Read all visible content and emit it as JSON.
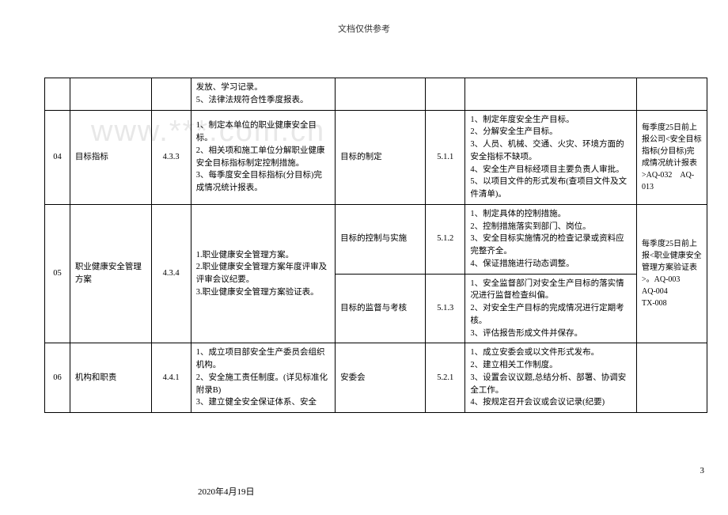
{
  "header": "文档仅供参考",
  "watermark": "www.***.com.cn",
  "footer_date": "2020年4月19日",
  "page_number": "3",
  "rows": {
    "r0": {
      "desc1": "发放、学习记录。\n5、法律法规符合性季度报表。"
    },
    "r04": {
      "num": "04",
      "name": "目标指标",
      "code": "4.3.3",
      "desc1": "1、制定本单位的职业健康安全目标。\n2、相关项和施工单位分解职业健康安全目标指标制定控制措施。\n3、每季度安全目标指标(分目标)完成情况统计报表。",
      "target": "目标的制定",
      "code2": "5.1.1",
      "desc2": "1、制定年度安全生产目标。\n2、分解安全生产目标。\n3、人员、机械、交通、火灾、环境方面的安全指标不缺项。\n4、安全生产目标经项目主要负责人审批。\n5、以项目文件的形式发布(查项目文件及文件清单)。",
      "note": "每季度25日前上报公司<安全目标指标(分目标)完成情况统计报表>AQ-032　AQ-013"
    },
    "r05a": {
      "num": "05",
      "name": "职业健康安全管理方案",
      "code": "4.3.4",
      "desc1": "1.职业健康安全管理方案。\n2.职业健康安全管理方案年度评审及评审会议纪要。\n3.职业健康安全管理方案验证表。",
      "target": "目标的控制与实施",
      "code2": "5.1.2",
      "desc2": "1、制定具体的控制措施。\n2、控制措施落实到部门、岗位。\n3、安全目标实施情况的检查记录或资料应完整齐全。\n4、保证措施进行动态调整。",
      "note": "每季度25日前上报<职业健康安全管理方案验证表>。AQ-003\nAQ-004\nTX-008"
    },
    "r05b": {
      "target": "目标的监督与考核",
      "code2": "5.1.3",
      "desc2": "1、安全监督部门对安全生产目标的落实情况进行监督检查纠偏。\n2、对安全生产目标的完成情况进行定期考核。\n3、评估报告形成文件并保存。"
    },
    "r06": {
      "num": "06",
      "name": "机构和职责",
      "code": "4.4.1",
      "desc1": "1、成立项目部安全生产委员会组织机构。\n2、安全施工责任制度。(详见标准化附录B)\n3、建立健全安全保证体系、安全",
      "target": "安委会",
      "code2": "5.2.1",
      "desc2": "1、成立安委会或以文件形式发布。\n2、建立相关工作制度。\n3、设置会议议题,总结分析、部署、协调安全工作。\n4、按规定召开会议或会议记录(纪要)"
    }
  }
}
